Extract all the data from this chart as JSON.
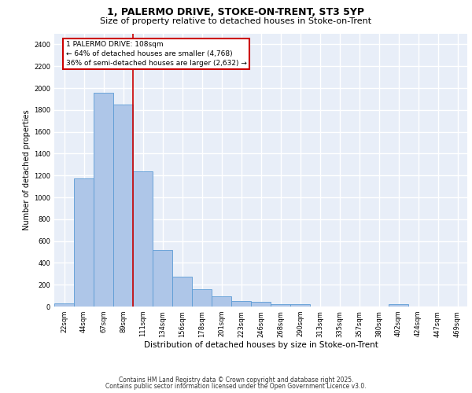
{
  "title_line1": "1, PALERMO DRIVE, STOKE-ON-TRENT, ST3 5YP",
  "title_line2": "Size of property relative to detached houses in Stoke-on-Trent",
  "xlabel": "Distribution of detached houses by size in Stoke-on-Trent",
  "ylabel": "Number of detached properties",
  "categories": [
    "22sqm",
    "44sqm",
    "67sqm",
    "89sqm",
    "111sqm",
    "134sqm",
    "156sqm",
    "178sqm",
    "201sqm",
    "223sqm",
    "246sqm",
    "268sqm",
    "290sqm",
    "313sqm",
    "335sqm",
    "357sqm",
    "380sqm",
    "402sqm",
    "424sqm",
    "447sqm",
    "469sqm"
  ],
  "values": [
    28,
    1170,
    1960,
    1850,
    1240,
    515,
    270,
    155,
    90,
    48,
    42,
    22,
    18,
    0,
    0,
    0,
    0,
    20,
    0,
    0,
    0
  ],
  "bar_color": "#aec6e8",
  "bar_edge_color": "#5b9bd5",
  "background_color": "#e8eef8",
  "grid_color": "#ffffff",
  "redline_x": 3.5,
  "annotation_text": "1 PALERMO DRIVE: 108sqm\n← 64% of detached houses are smaller (4,768)\n36% of semi-detached houses are larger (2,632) →",
  "annotation_box_facecolor": "#ffffff",
  "annotation_border_color": "#cc0000",
  "ylim": [
    0,
    2500
  ],
  "yticks": [
    0,
    200,
    400,
    600,
    800,
    1000,
    1200,
    1400,
    1600,
    1800,
    2000,
    2200,
    2400
  ],
  "footnote_line1": "Contains HM Land Registry data © Crown copyright and database right 2025.",
  "footnote_line2": "Contains public sector information licensed under the Open Government Licence v3.0.",
  "title_fontsize": 9,
  "subtitle_fontsize": 8,
  "tick_fontsize": 6,
  "label_fontsize": 7.5,
  "footnote_fontsize": 5.5,
  "annotation_fontsize": 6.5,
  "ylabel_fontsize": 7
}
